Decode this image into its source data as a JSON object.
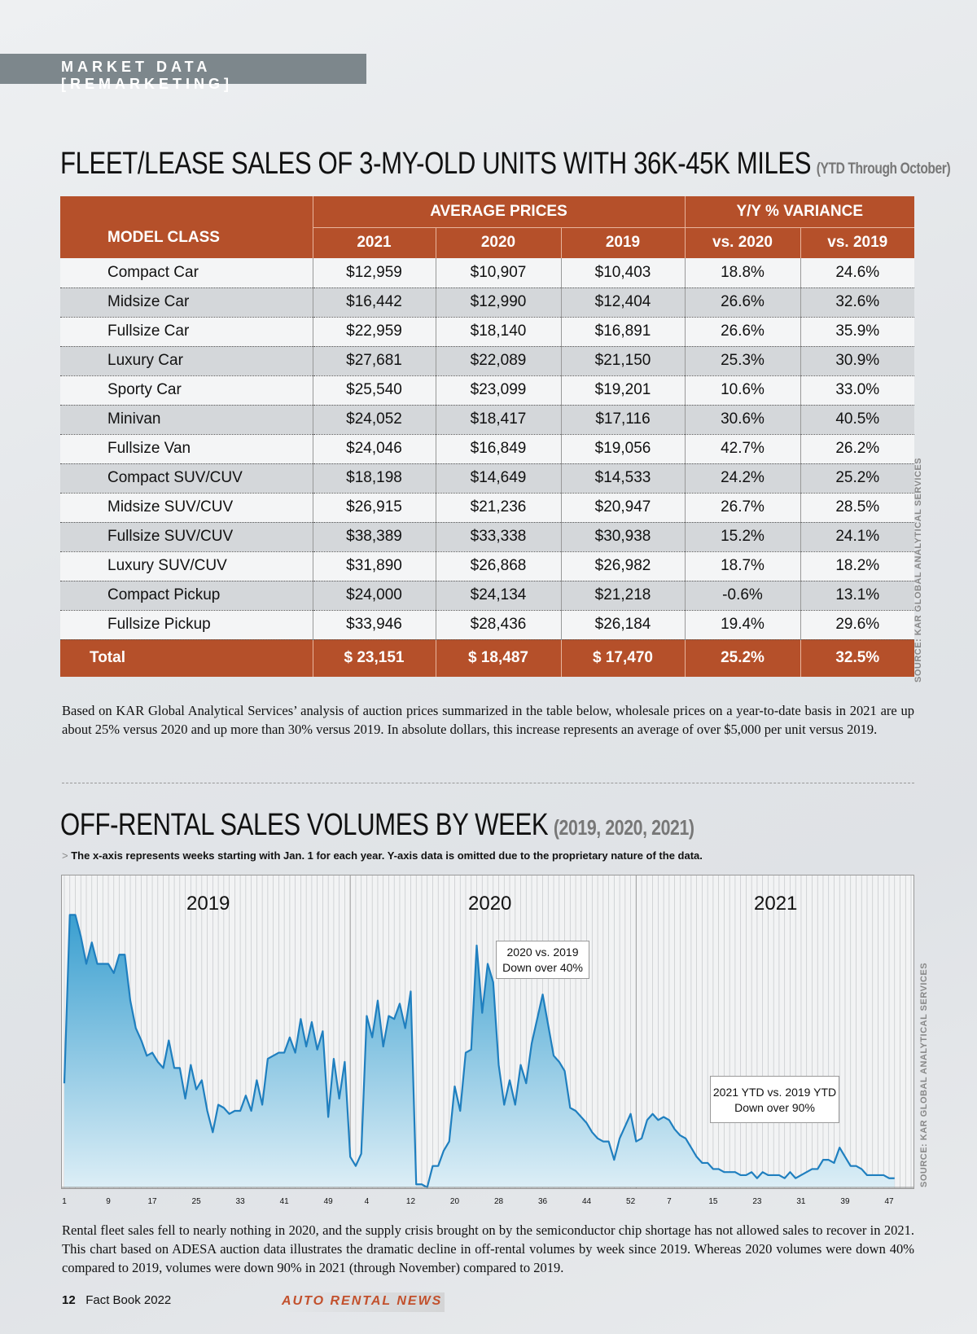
{
  "section_label": "MARKET DATA [REMARKETING]",
  "table_section": {
    "title": "FLEET/LEASE SALES OF 3-MY-OLD UNITS WITH 36K-45K MILES",
    "subtitle": "(YTD Through October)",
    "headers": {
      "model_class": "MODEL CLASS",
      "average_prices": "AVERAGE PRICES",
      "variance": "Y/Y % VARIANCE",
      "y2021": "2021",
      "y2020": "2020",
      "y2019": "2019",
      "vs2020": "vs. 2020",
      "vs2019": "vs. 2019"
    },
    "rows": [
      [
        "Compact Car",
        "$12,959",
        "$10,907",
        "$10,403",
        "18.8%",
        "24.6%"
      ],
      [
        "Midsize Car",
        "$16,442",
        "$12,990",
        "$12,404",
        "26.6%",
        "32.6%"
      ],
      [
        "Fullsize Car",
        "$22,959",
        "$18,140",
        "$16,891",
        "26.6%",
        "35.9%"
      ],
      [
        "Luxury Car",
        "$27,681",
        "$22,089",
        "$21,150",
        "25.3%",
        "30.9%"
      ],
      [
        "Sporty Car",
        "$25,540",
        "$23,099",
        "$19,201",
        "10.6%",
        "33.0%"
      ],
      [
        "Minivan",
        "$24,052",
        "$18,417",
        "$17,116",
        "30.6%",
        "40.5%"
      ],
      [
        "Fullsize Van",
        "$24,046",
        "$16,849",
        "$19,056",
        "42.7%",
        "26.2%"
      ],
      [
        "Compact SUV/CUV",
        "$18,198",
        "$14,649",
        "$14,533",
        "24.2%",
        "25.2%"
      ],
      [
        "Midsize SUV/CUV",
        "$26,915",
        "$21,236",
        "$20,947",
        "26.7%",
        "28.5%"
      ],
      [
        "Fullsize SUV/CUV",
        "$38,389",
        "$33,338",
        "$30,938",
        "15.2%",
        "24.1%"
      ],
      [
        "Luxury SUV/CUV",
        "$31,890",
        "$26,868",
        "$26,982",
        "18.7%",
        "18.2%"
      ],
      [
        "Compact Pickup",
        "$24,000",
        "$24,134",
        "$21,218",
        "-0.6%",
        "13.1%"
      ],
      [
        "Fullsize Pickup",
        "$33,946",
        "$28,436",
        "$26,184",
        "19.4%",
        "29.6%"
      ]
    ],
    "total": [
      "Total",
      "$ 23,151",
      "$ 18,487",
      "$ 17,470",
      "25.2%",
      "32.5%"
    ],
    "source": "SOURCE: KAR GLOBAL ANALYTICAL SERVICES",
    "paragraph": "Based on KAR Global Analytical Services’ analysis of auction prices summarized in the table below, wholesale prices on a year-to-date basis in 2021 are up about 25% versus 2020 and up more than 30% versus 2019. In absolute dollars, this increase represents an average of over $5,000 per unit versus 2019."
  },
  "chart_section": {
    "title": "OFF-RENTAL SALES VOLUMES BY WEEK",
    "subtitle": "(2019, 2020, 2021)",
    "note_prefix": ">",
    "note": "The x-axis represents weeks starting with Jan. 1 for each year. Y-axis data is omitted due to the proprietary nature of the data.",
    "source": "SOURCE: KAR GLOBAL ANALYTICAL SERVICES",
    "paragraph": "Rental fleet sales fell to nearly nothing in 2020, and the supply crisis brought on by the semiconductor chip shortage has not allowed sales to recover in 2021. This chart based on ADESA auction data illustrates the dramatic decline in off-rental volumes by week since 2019. Whereas 2020 volumes were down 40% compared to 2019, volumes were down 90% in 2021 (through November) compared to 2019."
  },
  "chart_data": {
    "type": "area",
    "title": "",
    "xlabel": "",
    "ylabel": "",
    "year_labels": [
      "2019",
      "2020",
      "2021"
    ],
    "x_tick_labels": [
      "1",
      "9",
      "17",
      "25",
      "33",
      "41",
      "49",
      "4",
      "12",
      "20",
      "28",
      "36",
      "44",
      "52",
      "7",
      "15",
      "23",
      "31",
      "39",
      "47"
    ],
    "annotations": [
      {
        "line1": "2020 vs. 2019",
        "line2": "Down over 40%"
      },
      {
        "line1": "2021 YTD vs. 2019 YTD",
        "line2": "Down over 90%"
      }
    ],
    "y_axis_shown": false,
    "grid": "vertical weekly",
    "line_color": "#1f7fbf",
    "fill_color": "#3a9fd0",
    "values_relative": [
      34,
      89,
      89,
      82,
      73,
      80,
      73,
      73,
      73,
      70,
      76,
      76,
      61,
      52,
      48,
      43,
      44,
      41,
      39,
      48,
      39,
      39,
      29,
      40,
      32,
      35,
      25,
      18,
      27,
      26,
      24,
      25,
      25,
      30,
      25,
      35,
      27,
      42,
      43,
      44,
      44,
      49,
      44,
      55,
      46,
      54,
      45,
      51,
      23,
      42,
      29,
      41,
      10,
      7,
      11,
      56,
      49,
      61,
      46,
      56,
      55,
      60,
      52,
      64,
      1,
      1,
      0,
      7,
      7,
      12,
      15,
      33,
      25,
      44,
      45,
      79,
      57,
      73,
      67,
      40,
      27,
      35,
      27,
      40,
      34,
      47,
      55,
      63,
      53,
      43,
      41,
      38,
      26,
      25,
      23,
      21,
      18,
      16,
      15,
      15,
      9,
      16,
      20,
      24,
      15,
      16,
      22,
      24,
      22,
      23,
      22,
      19,
      17,
      16,
      13,
      10,
      8,
      8,
      6,
      6,
      5,
      5,
      5,
      4,
      4,
      5,
      3,
      5,
      4,
      4,
      4,
      3,
      5,
      3,
      4,
      5,
      6,
      6,
      9,
      9,
      8,
      13,
      10,
      7,
      7,
      6,
      4,
      4,
      4,
      4,
      3,
      3
    ]
  },
  "footer": {
    "page": "12",
    "book": "Fact Book 2022",
    "brand": "AUTO RENTAL NEWS"
  }
}
